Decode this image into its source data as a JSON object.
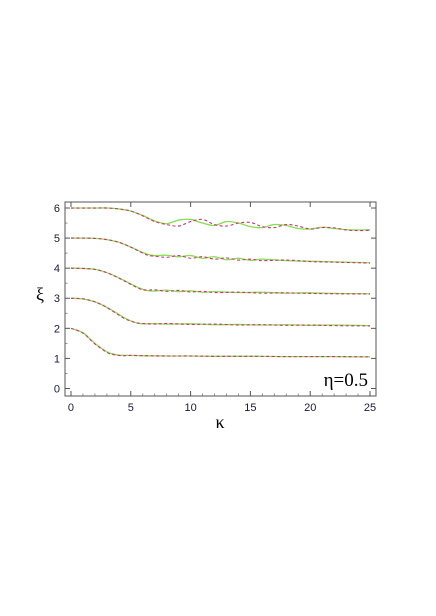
{
  "chart_data": {
    "type": "line",
    "title": "",
    "xlabel": "κ",
    "ylabel": "ξ",
    "xlim": [
      -0.5,
      25.5
    ],
    "ylim": [
      -0.25,
      6.2
    ],
    "xticks": [
      0,
      5,
      10,
      15,
      20,
      25
    ],
    "yticks": [
      0,
      1,
      2,
      3,
      4,
      5,
      6
    ],
    "grid": false,
    "legend": "none",
    "annotation": "η=0.5",
    "series": [
      {
        "color": "#86e04a",
        "style": "solid",
        "curves": [
          {
            "x": [
              0,
              1,
              2,
              3,
              3.5,
              4,
              4.5,
              5,
              6,
              8,
              10,
              12,
              15,
              18,
              20,
              22,
              25
            ],
            "y": [
              2,
              1.85,
              1.5,
              1.22,
              1.15,
              1.11,
              1.1,
              1.1,
              1.09,
              1.08,
              1.08,
              1.07,
              1.07,
              1.06,
              1.06,
              1.06,
              1.05
            ]
          },
          {
            "x": [
              0,
              1,
              2,
              3,
              4,
              4.5,
              5,
              5.5,
              6,
              7,
              8,
              10,
              12,
              14,
              16,
              18,
              20,
              22,
              25
            ],
            "y": [
              3,
              2.98,
              2.88,
              2.7,
              2.46,
              2.34,
              2.25,
              2.18,
              2.15,
              2.16,
              2.14,
              2.15,
              2.12,
              2.13,
              2.11,
              2.12,
              2.1,
              2.11,
              2.09
            ]
          },
          {
            "x": [
              0,
              1,
              2,
              3,
              4,
              5,
              5.5,
              6,
              6.5,
              7,
              8,
              9,
              10,
              11,
              12,
              14,
              16,
              18,
              20,
              22,
              25
            ],
            "y": [
              4,
              3.99,
              3.96,
              3.85,
              3.68,
              3.48,
              3.38,
              3.3,
              3.25,
              3.24,
              3.27,
              3.22,
              3.25,
              3.2,
              3.22,
              3.19,
              3.2,
              3.17,
              3.18,
              3.16,
              3.15
            ]
          },
          {
            "x": [
              0,
              1,
              2,
              3,
              4,
              5,
              6,
              6.5,
              7,
              8,
              9,
              10,
              11,
              12,
              13,
              14,
              15,
              16,
              18,
              20,
              22,
              25
            ],
            "y": [
              5,
              5,
              4.99,
              4.95,
              4.86,
              4.7,
              4.52,
              4.45,
              4.42,
              4.43,
              4.38,
              4.42,
              4.33,
              4.38,
              4.28,
              4.33,
              4.26,
              4.3,
              4.25,
              4.23,
              4.21,
              4.18
            ]
          },
          {
            "x": [
              0,
              1,
              2,
              3,
              4,
              5,
              6,
              7,
              8,
              9,
              10,
              11,
              12,
              13,
              14,
              15,
              16,
              17,
              18,
              19,
              20,
              21,
              22,
              23,
              24,
              25
            ],
            "y": [
              6,
              6,
              6,
              6,
              5.97,
              5.9,
              5.75,
              5.57,
              5.48,
              5.6,
              5.62,
              5.5,
              5.42,
              5.55,
              5.5,
              5.38,
              5.35,
              5.45,
              5.42,
              5.32,
              5.3,
              5.36,
              5.32,
              5.28,
              5.27,
              5.28
            ]
          }
        ]
      },
      {
        "color": "#d0307a",
        "style": "dashed",
        "curves": [
          {
            "x": [
              0,
              1,
              2,
              3,
              3.5,
              4,
              4.5,
              5,
              6,
              8,
              10,
              12,
              15,
              18,
              20,
              22,
              25
            ],
            "y": [
              2,
              1.84,
              1.48,
              1.2,
              1.13,
              1.1,
              1.09,
              1.1,
              1.09,
              1.08,
              1.08,
              1.07,
              1.07,
              1.06,
              1.06,
              1.06,
              1.05
            ]
          },
          {
            "x": [
              0,
              1,
              2,
              3,
              4,
              4.5,
              5,
              5.5,
              6,
              7,
              8,
              10,
              12,
              14,
              16,
              18,
              20,
              22,
              25
            ],
            "y": [
              3,
              2.98,
              2.88,
              2.69,
              2.44,
              2.32,
              2.24,
              2.18,
              2.16,
              2.14,
              2.16,
              2.13,
              2.14,
              2.11,
              2.12,
              2.1,
              2.11,
              2.09,
              2.08
            ]
          },
          {
            "x": [
              0,
              1,
              2,
              3,
              4,
              5,
              5.5,
              6,
              6.5,
              7,
              8,
              9,
              10,
              11,
              12,
              14,
              16,
              18,
              20,
              22,
              25
            ],
            "y": [
              4,
              3.99,
              3.96,
              3.85,
              3.67,
              3.46,
              3.36,
              3.28,
              3.27,
              3.28,
              3.23,
              3.26,
              3.21,
              3.23,
              3.19,
              3.2,
              3.17,
              3.18,
              3.16,
              3.15,
              3.14
            ]
          },
          {
            "x": [
              0,
              1,
              2,
              3,
              4,
              5,
              6,
              6.5,
              7,
              8,
              9,
              10,
              11,
              12,
              13,
              14,
              15,
              16,
              18,
              20,
              22,
              25
            ],
            "y": [
              5,
              5,
              4.99,
              4.95,
              4.86,
              4.7,
              4.5,
              4.42,
              4.4,
              4.36,
              4.42,
              4.33,
              4.38,
              4.3,
              4.34,
              4.27,
              4.3,
              4.25,
              4.27,
              4.22,
              4.2,
              4.17
            ]
          },
          {
            "x": [
              0,
              1,
              2,
              3,
              4,
              5,
              6,
              7,
              8,
              9,
              10,
              11,
              12,
              13,
              14,
              15,
              16,
              17,
              18,
              19,
              20,
              21,
              22,
              23,
              24,
              25
            ],
            "y": [
              6,
              6,
              6,
              6,
              5.97,
              5.9,
              5.74,
              5.55,
              5.45,
              5.4,
              5.55,
              5.62,
              5.45,
              5.4,
              5.5,
              5.52,
              5.38,
              5.35,
              5.45,
              5.4,
              5.3,
              5.35,
              5.34,
              5.27,
              5.25,
              5.26
            ]
          }
        ]
      }
    ]
  }
}
